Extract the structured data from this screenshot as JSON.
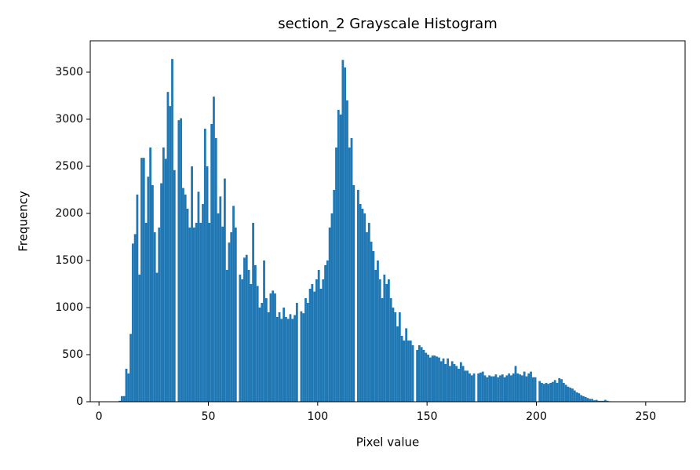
{
  "chart_data": {
    "type": "histogram",
    "title": "section_2 Grayscale Histogram",
    "xlabel": "Pixel value",
    "ylabel": "Frequency",
    "color": "#1f77b4",
    "bins": [
      0,
      1,
      2,
      3,
      4,
      5,
      6,
      7,
      8,
      9,
      10,
      11,
      12,
      13,
      14,
      15,
      16,
      17,
      18,
      19,
      20,
      21,
      22,
      23,
      24,
      25,
      26,
      27,
      28,
      29,
      30,
      31,
      32,
      33,
      34,
      35,
      36,
      37,
      38,
      39,
      40,
      41,
      42,
      43,
      44,
      45,
      46,
      47,
      48,
      49,
      50,
      51,
      52,
      53,
      54,
      55,
      56,
      57,
      58,
      59,
      60,
      61,
      62,
      63,
      64,
      65,
      66,
      67,
      68,
      69,
      70,
      71,
      72,
      73,
      74,
      75,
      76,
      77,
      78,
      79,
      80,
      81,
      82,
      83,
      84,
      85,
      86,
      87,
      88,
      89,
      90,
      91,
      92,
      93,
      94,
      95,
      96,
      97,
      98,
      99,
      100,
      101,
      102,
      103,
      104,
      105,
      106,
      107,
      108,
      109,
      110,
      111,
      112,
      113,
      114,
      115,
      116,
      117,
      118,
      119,
      120,
      121,
      122,
      123,
      124,
      125,
      126,
      127,
      128,
      129,
      130,
      131,
      132,
      133,
      134,
      135,
      136,
      137,
      138,
      139,
      140,
      141,
      142,
      143,
      144,
      145,
      146,
      147,
      148,
      149,
      150,
      151,
      152,
      153,
      154,
      155,
      156,
      157,
      158,
      159,
      160,
      161,
      162,
      163,
      164,
      165,
      166,
      167,
      168,
      169,
      170,
      171,
      172,
      173,
      174,
      175,
      176,
      177,
      178,
      179,
      180,
      181,
      182,
      183,
      184,
      185,
      186,
      187,
      188,
      189,
      190,
      191,
      192,
      193,
      194,
      195,
      196,
      197,
      198,
      199,
      200,
      201,
      202,
      203,
      204,
      205,
      206,
      207,
      208,
      209,
      210,
      211,
      212,
      213,
      214,
      215,
      216,
      217,
      218,
      219,
      220,
      221,
      222,
      223,
      224,
      225,
      226,
      227,
      228,
      229,
      230,
      231,
      232,
      233,
      234,
      235,
      236,
      237,
      238,
      239,
      240,
      241,
      242,
      243,
      244,
      245,
      246,
      247,
      248,
      249,
      250,
      251,
      252,
      253,
      254,
      255,
      256
    ],
    "values": [
      0,
      0,
      0,
      0,
      0,
      0,
      0,
      0,
      0,
      10,
      60,
      60,
      350,
      300,
      720,
      1680,
      1780,
      2200,
      1350,
      2590,
      2590,
      1900,
      2390,
      2700,
      2300,
      1800,
      1370,
      1850,
      2320,
      2700,
      2580,
      3290,
      3140,
      3640,
      2460,
      0,
      2990,
      3010,
      2270,
      2200,
      2050,
      1850,
      2500,
      1850,
      1900,
      2230,
      1900,
      2100,
      2900,
      2500,
      1900,
      2950,
      3240,
      2800,
      2000,
      2180,
      1860,
      2370,
      1400,
      1690,
      1800,
      2080,
      1850,
      0,
      1350,
      1300,
      1530,
      1560,
      1400,
      1250,
      1900,
      1450,
      1230,
      1000,
      1050,
      1500,
      1100,
      950,
      1150,
      1180,
      1150,
      900,
      950,
      880,
      1000,
      900,
      880,
      930,
      880,
      920,
      1050,
      0,
      960,
      940,
      1100,
      1050,
      1200,
      1250,
      1170,
      1300,
      1400,
      1200,
      1300,
      1450,
      1500,
      1850,
      2000,
      2250,
      2700,
      3100,
      3050,
      3630,
      3550,
      3200,
      2700,
      2800,
      2300,
      0,
      2250,
      2100,
      2050,
      2000,
      1800,
      1900,
      1700,
      1600,
      1400,
      1500,
      1300,
      1100,
      1350,
      1250,
      1300,
      1100,
      1000,
      950,
      800,
      950,
      700,
      650,
      780,
      650,
      650,
      600,
      0,
      550,
      600,
      580,
      550,
      520,
      500,
      470,
      490,
      490,
      480,
      470,
      430,
      460,
      400,
      460,
      380,
      430,
      400,
      380,
      350,
      420,
      380,
      330,
      330,
      300,
      280,
      300,
      0,
      300,
      310,
      320,
      280,
      260,
      280,
      270,
      270,
      290,
      260,
      280,
      290,
      260,
      280,
      300,
      280,
      300,
      380,
      300,
      290,
      280,
      320,
      270,
      300,
      320,
      260,
      260,
      0,
      220,
      200,
      190,
      200,
      190,
      200,
      210,
      230,
      200,
      250,
      240,
      200,
      180,
      160,
      150,
      140,
      120,
      100,
      90,
      70,
      60,
      50,
      40,
      30,
      30,
      15,
      20,
      10,
      10,
      10,
      20,
      10,
      5,
      0,
      0,
      0,
      0,
      0,
      0,
      0,
      0,
      0,
      0,
      0,
      0,
      0,
      0,
      0,
      0,
      0,
      0,
      0,
      0,
      0,
      0
    ],
    "xlim": [
      -4,
      268
    ],
    "ylim": [
      0,
      3833
    ],
    "xticks": [
      0,
      50,
      100,
      150,
      200,
      250
    ],
    "yticks": [
      0,
      500,
      1000,
      1500,
      2000,
      2500,
      3000,
      3500
    ]
  }
}
